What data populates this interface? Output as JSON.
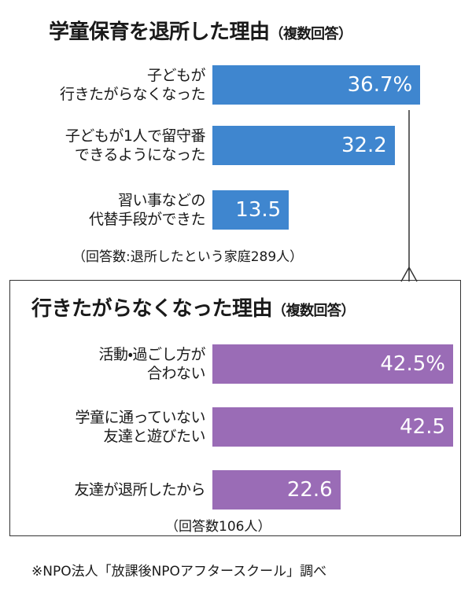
{
  "chart_data": [
    {
      "type": "bar",
      "orientation": "horizontal",
      "title": "学童保育を退所した理由",
      "subtitle": "（複数回答）",
      "categories": [
        "子どもが\n行きたがらなくなった",
        "子どもが1人で留守番\nできるようになった",
        "習い事などの\n代替手段ができた"
      ],
      "values": [
        36.7,
        32.2,
        13.5
      ],
      "value_labels": [
        "36.7%",
        "32.2",
        "13.5"
      ],
      "color": "#3f86cf",
      "note": "（回答数:退所したという家庭289人）"
    },
    {
      "type": "bar",
      "orientation": "horizontal",
      "title": "行きたがらなくなった理由",
      "subtitle": "（複数回答）",
      "categories": [
        "活動・過ごし方が\n合わない",
        "学童に通っていない\n友達と遊びたい",
        "友達が退所したから"
      ],
      "values": [
        42.5,
        42.5,
        22.6
      ],
      "value_labels": [
        "42.5%",
        "42.5",
        "22.6"
      ],
      "color": "#9a6cb6",
      "note": "（回答数106人）"
    }
  ],
  "source": "※NPO法人「放課後NPOアフタースクール」調べ"
}
